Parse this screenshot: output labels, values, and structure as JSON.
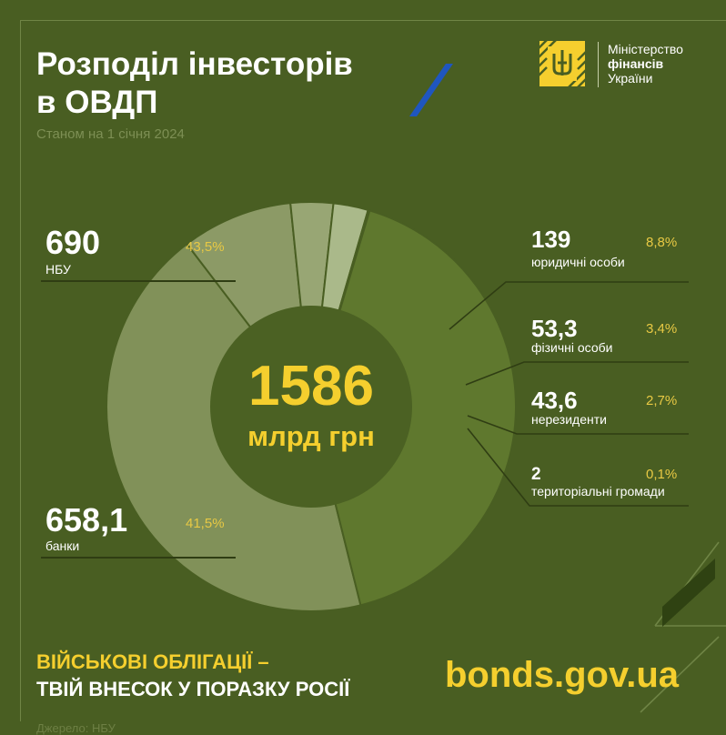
{
  "title_line1": "Розподіл інвесторів",
  "title_line2": "в ОВДП",
  "subtitle": "Станом на 1 січня 2024",
  "logo": {
    "line1": "Міністерство",
    "line2": "фінансів",
    "line3": "України",
    "icon": "trident-emblem"
  },
  "center": {
    "value": "1586",
    "unit": "млрд грн"
  },
  "slogan": {
    "line1": "ВІЙСЬКОВІ ОБЛІГАЦІЇ –",
    "line2": "ТВІЙ ВНЕСОК У ПОРАЗКУ РОСІЇ"
  },
  "website": "bonds.gov.ua",
  "source": "Джерело: НБУ",
  "colors": {
    "background": "#495e22",
    "accent_yellow": "#f5cf2e",
    "ring_nbu": "#819159",
    "ring_banks": "#5f782e"
  },
  "chart_data": {
    "type": "pie",
    "title": "Розподіл інвесторів в ОВДП",
    "unit": "млрд грн",
    "total": 1586,
    "slices": [
      {
        "label": "НБУ",
        "value": 690,
        "value_text": "690",
        "percent": 43.5,
        "percent_text": "43,5%",
        "color": "#819159"
      },
      {
        "label": "юридичні особи",
        "value": 139,
        "value_text": "139",
        "percent": 8.8,
        "percent_text": "8,8%",
        "color": "#8c9a66"
      },
      {
        "label": "фізичні особи",
        "value": 53.3,
        "value_text": "53,3",
        "percent": 3.4,
        "percent_text": "3,4%",
        "color": "#98a674"
      },
      {
        "label": "нерезиденти",
        "value": 43.6,
        "value_text": "43,6",
        "percent": 2.7,
        "percent_text": "2,7%",
        "color": "#aab98a"
      },
      {
        "label": "територіальні громади",
        "value": 2,
        "value_text": "2",
        "percent": 0.1,
        "percent_text": "0,1%",
        "color": "#d9e1c6"
      },
      {
        "label": "банки",
        "value": 658.1,
        "value_text": "658,1",
        "percent": 41.5,
        "percent_text": "41,5%",
        "color": "#5f782e"
      }
    ]
  }
}
